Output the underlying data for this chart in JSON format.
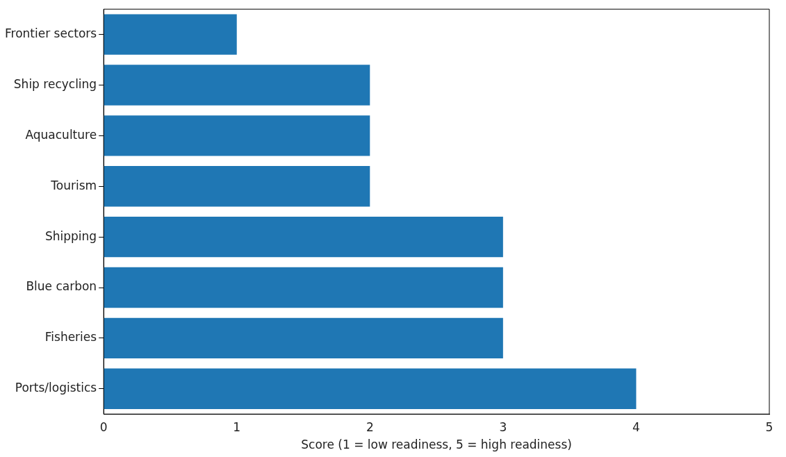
{
  "chart_data": {
    "type": "bar",
    "orientation": "horizontal",
    "categories": [
      "Frontier sectors",
      "Ship recycling",
      "Aquaculture",
      "Tourism",
      "Shipping",
      "Blue carbon",
      "Fisheries",
      "Ports/logistics"
    ],
    "values": [
      1,
      2,
      2,
      2,
      3,
      3,
      3,
      4
    ],
    "color": "#1f77b4",
    "xlabel": "Score (1 = low readiness, 5 = high readiness)",
    "xlim": [
      0,
      5
    ],
    "xticks": [
      0,
      1,
      2,
      3,
      4,
      5
    ],
    "grid": false,
    "legend": false
  }
}
